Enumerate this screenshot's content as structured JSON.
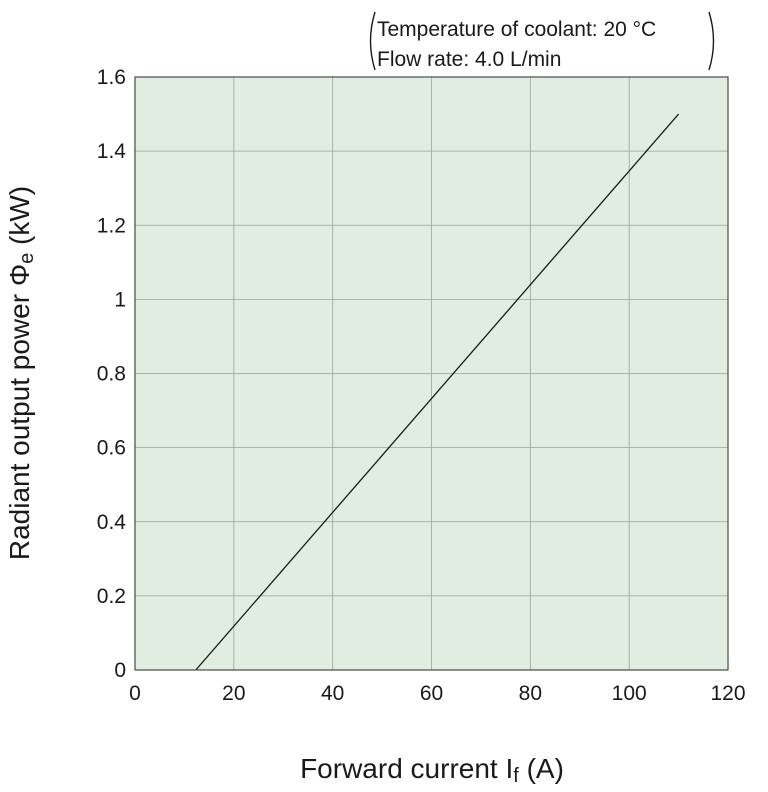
{
  "chart_data": {
    "type": "line",
    "xlabel": {
      "main": "Forward current I",
      "sub": "f",
      "unit": " (A)"
    },
    "ylabel": {
      "main": "Radiant output power Φ",
      "sub": "e",
      "unit": " (kW)"
    },
    "annotation": [
      "Temperature of coolant: 20 °C",
      "Flow rate: 4.0 L/min"
    ],
    "xlim": [
      0,
      120
    ],
    "ylim": [
      0,
      1.6
    ],
    "x_ticks": [
      0,
      20,
      40,
      60,
      80,
      100,
      120
    ],
    "x_tick_labels": [
      "0",
      "20",
      "40",
      "60",
      "80",
      "100",
      "120"
    ],
    "y_ticks": [
      0,
      0.2,
      0.4,
      0.6,
      0.8,
      1,
      1.2,
      1.4,
      1.6
    ],
    "y_tick_labels": [
      "0",
      "0.2",
      "0.4",
      "0.6",
      "0.8",
      "1",
      "1.2",
      "1.4",
      "1.6"
    ],
    "grid": true,
    "series": [
      {
        "x": [
          12.3,
          110
        ],
        "y": [
          0,
          1.5
        ]
      }
    ],
    "colors": {
      "plot_background": "#e0ede0",
      "grid": "#9aa39a",
      "line": "#1a1a1a",
      "frame": "#4a4a4a"
    }
  }
}
